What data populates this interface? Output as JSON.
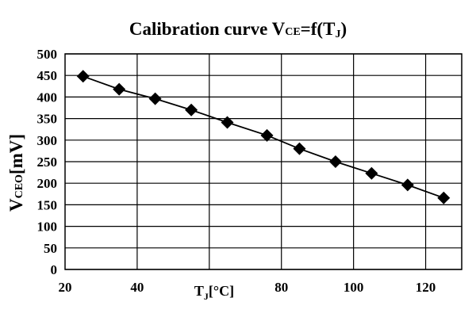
{
  "chart_data": {
    "type": "line",
    "title": {
      "main": "Calibration  curve V",
      "sub": "CE",
      "tail": "=f(T",
      "sub2": "J",
      "end": ")"
    },
    "ylabel": {
      "main": "V",
      "sub": "CEO",
      "unit": "[mV]"
    },
    "xlabel": {
      "main": "T",
      "sub": "J",
      "unit": "[°C]"
    },
    "xlim": [
      20,
      130
    ],
    "ylim": [
      0,
      500
    ],
    "x_ticks": [
      20,
      40,
      80,
      100,
      120
    ],
    "y_ticks": [
      0,
      50,
      100,
      150,
      200,
      250,
      300,
      350,
      400,
      450,
      500
    ],
    "grid": true,
    "marker": "diamond",
    "series": [
      {
        "x": [
          25,
          35,
          45,
          55,
          65,
          76,
          85,
          95,
          105,
          115,
          125
        ],
        "y": [
          448,
          418,
          396,
          370,
          341,
          311,
          280,
          250,
          223,
          196,
          166
        ]
      }
    ]
  }
}
